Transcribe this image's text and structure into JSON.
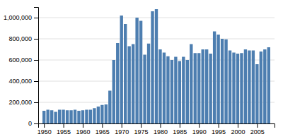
{
  "chart_data": {
    "type": "bar",
    "x": [
      1950,
      1951,
      1952,
      1953,
      1954,
      1955,
      1956,
      1957,
      1958,
      1959,
      1960,
      1961,
      1962,
      1963,
      1964,
      1965,
      1966,
      1967,
      1968,
      1969,
      1970,
      1971,
      1972,
      1973,
      1974,
      1975,
      1976,
      1977,
      1978,
      1979,
      1980,
      1981,
      1982,
      1983,
      1984,
      1985,
      1986,
      1987,
      1988,
      1989,
      1990,
      1991,
      1992,
      1993,
      1994,
      1995,
      1996,
      1997,
      1998,
      1999,
      2000,
      2001,
      2002,
      2003,
      2004,
      2005,
      2006,
      2007,
      2008
    ],
    "values": [
      120000,
      130000,
      125000,
      110000,
      130000,
      130000,
      125000,
      125000,
      130000,
      120000,
      125000,
      130000,
      130000,
      145000,
      160000,
      175000,
      180000,
      310000,
      600000,
      760000,
      1020000,
      940000,
      730000,
      750000,
      1000000,
      970000,
      650000,
      755000,
      1060000,
      1080000,
      700000,
      670000,
      635000,
      600000,
      630000,
      590000,
      630000,
      600000,
      750000,
      665000,
      665000,
      700000,
      700000,
      660000,
      870000,
      840000,
      800000,
      795000,
      690000,
      670000,
      660000,
      665000,
      700000,
      690000,
      690000,
      560000,
      680000,
      700000,
      720000
    ],
    "color": "#4d7eb0",
    "xlim": [
      1948.5,
      2009.5
    ],
    "xticks": [
      1950,
      1955,
      1960,
      1965,
      1970,
      1975,
      1980,
      1985,
      1990,
      1995,
      2000,
      2005
    ],
    "ylim": [
      0,
      1100000
    ],
    "yticks": [
      0,
      {
        "value": 200000,
        "label": "200,000"
      },
      {
        "value": 400000,
        "label": "400,000"
      },
      {
        "value": 600000,
        "label": "600,000"
      },
      {
        "value": 800000,
        "label": "800,000"
      },
      {
        "value": 1000000,
        "label": "1,000,000"
      }
    ],
    "grid": true
  }
}
